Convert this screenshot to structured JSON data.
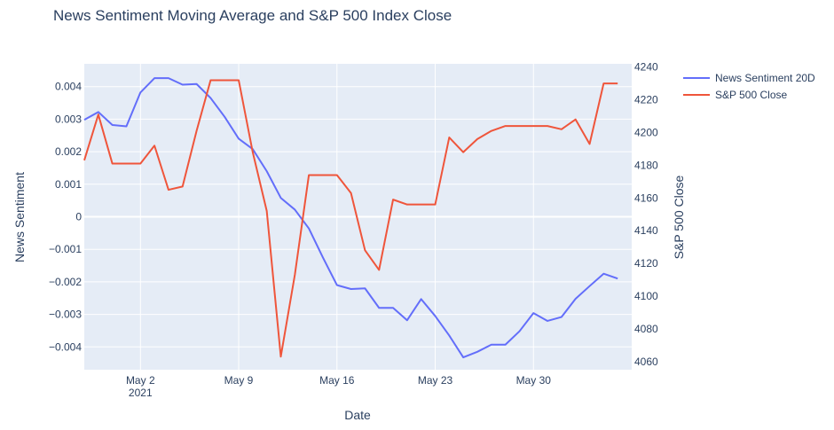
{
  "chart_data": {
    "type": "line",
    "title": "News Sentiment Moving Average and S&P 500 Index Close",
    "xlabel": "Date",
    "ylabel_left": "News Sentiment",
    "ylabel_right": "S&P 500 Close",
    "x_ticks": [
      {
        "date": "2021-05-02",
        "label": "May 2",
        "sublabel": "2021"
      },
      {
        "date": "2021-05-09",
        "label": "May 9",
        "sublabel": ""
      },
      {
        "date": "2021-05-16",
        "label": "May 16",
        "sublabel": ""
      },
      {
        "date": "2021-05-23",
        "label": "May 23",
        "sublabel": ""
      },
      {
        "date": "2021-05-30",
        "label": "May 30",
        "sublabel": ""
      }
    ],
    "xlim": [
      "2021-04-28",
      "2021-06-06"
    ],
    "ylim_left": [
      -0.0047,
      0.0047
    ],
    "ylim_right": [
      4055,
      4242
    ],
    "y_ticks_left": [
      {
        "value": -0.004,
        "label": "−0.004"
      },
      {
        "value": -0.003,
        "label": "−0.003"
      },
      {
        "value": -0.002,
        "label": "−0.002"
      },
      {
        "value": -0.001,
        "label": "−0.001"
      },
      {
        "value": 0,
        "label": "0"
      },
      {
        "value": 0.001,
        "label": "0.001"
      },
      {
        "value": 0.002,
        "label": "0.002"
      },
      {
        "value": 0.003,
        "label": "0.003"
      },
      {
        "value": 0.004,
        "label": "0.004"
      }
    ],
    "y_ticks_right": [
      4060,
      4080,
      4100,
      4120,
      4140,
      4160,
      4180,
      4200,
      4220,
      4240
    ],
    "grid": true,
    "legend_position": "top-right",
    "series": [
      {
        "name": "News Sentiment 20D",
        "axis": "left",
        "color": "#636efa",
        "points": [
          [
            "2021-04-28",
            0.00298
          ],
          [
            "2021-04-29",
            0.00322
          ],
          [
            "2021-04-30",
            0.00282
          ],
          [
            "2021-05-01",
            0.00278
          ],
          [
            "2021-05-02",
            0.00382
          ],
          [
            "2021-05-03",
            0.00426
          ],
          [
            "2021-05-04",
            0.00426
          ],
          [
            "2021-05-05",
            0.00406
          ],
          [
            "2021-05-06",
            0.00408
          ],
          [
            "2021-05-07",
            0.00365
          ],
          [
            "2021-05-08",
            0.00307
          ],
          [
            "2021-05-09",
            0.0024
          ],
          [
            "2021-05-10",
            0.00208
          ],
          [
            "2021-05-11",
            0.0014
          ],
          [
            "2021-05-12",
            0.00058
          ],
          [
            "2021-05-13",
            0.00022
          ],
          [
            "2021-05-14",
            -0.00036
          ],
          [
            "2021-05-15",
            -0.00125
          ],
          [
            "2021-05-16",
            -0.0021
          ],
          [
            "2021-05-17",
            -0.00222
          ],
          [
            "2021-05-18",
            -0.0022
          ],
          [
            "2021-05-19",
            -0.0028
          ],
          [
            "2021-05-20",
            -0.0028
          ],
          [
            "2021-05-21",
            -0.00318
          ],
          [
            "2021-05-22",
            -0.00253
          ],
          [
            "2021-05-23",
            -0.00305
          ],
          [
            "2021-05-24",
            -0.00365
          ],
          [
            "2021-05-25",
            -0.00432
          ],
          [
            "2021-05-26",
            -0.00415
          ],
          [
            "2021-05-27",
            -0.00393
          ],
          [
            "2021-05-28",
            -0.00393
          ],
          [
            "2021-05-29",
            -0.00352
          ],
          [
            "2021-05-30",
            -0.00296
          ],
          [
            "2021-05-31",
            -0.0032
          ],
          [
            "2021-06-01",
            -0.00308
          ],
          [
            "2021-06-02",
            -0.00252
          ],
          [
            "2021-06-03",
            -0.00213
          ],
          [
            "2021-06-04",
            -0.00175
          ],
          [
            "2021-06-05",
            -0.0019
          ]
        ]
      },
      {
        "name": "S&P 500 Close",
        "axis": "right",
        "color": "#ef553b",
        "points": [
          [
            "2021-04-28",
            4183
          ],
          [
            "2021-04-29",
            4211
          ],
          [
            "2021-04-30",
            4181
          ],
          [
            "2021-05-01",
            4181
          ],
          [
            "2021-05-02",
            4181
          ],
          [
            "2021-05-03",
            4192
          ],
          [
            "2021-05-04",
            4165
          ],
          [
            "2021-05-05",
            4167
          ],
          [
            "2021-05-06",
            4201
          ],
          [
            "2021-05-07",
            4232
          ],
          [
            "2021-05-08",
            4232
          ],
          [
            "2021-05-09",
            4232
          ],
          [
            "2021-05-10",
            4188
          ],
          [
            "2021-05-11",
            4152
          ],
          [
            "2021-05-12",
            4063
          ],
          [
            "2021-05-13",
            4113
          ],
          [
            "2021-05-14",
            4174
          ],
          [
            "2021-05-15",
            4174
          ],
          [
            "2021-05-16",
            4174
          ],
          [
            "2021-05-17",
            4163
          ],
          [
            "2021-05-18",
            4128
          ],
          [
            "2021-05-19",
            4116
          ],
          [
            "2021-05-20",
            4159
          ],
          [
            "2021-05-21",
            4156
          ],
          [
            "2021-05-22",
            4156
          ],
          [
            "2021-05-23",
            4156
          ],
          [
            "2021-05-24",
            4197
          ],
          [
            "2021-05-25",
            4188
          ],
          [
            "2021-05-26",
            4196
          ],
          [
            "2021-05-27",
            4201
          ],
          [
            "2021-05-28",
            4204
          ],
          [
            "2021-05-29",
            4204
          ],
          [
            "2021-05-30",
            4204
          ],
          [
            "2021-05-31",
            4204
          ],
          [
            "2021-06-01",
            4202
          ],
          [
            "2021-06-02",
            4208
          ],
          [
            "2021-06-03",
            4193
          ],
          [
            "2021-06-04",
            4230
          ],
          [
            "2021-06-05",
            4230
          ]
        ]
      }
    ]
  }
}
